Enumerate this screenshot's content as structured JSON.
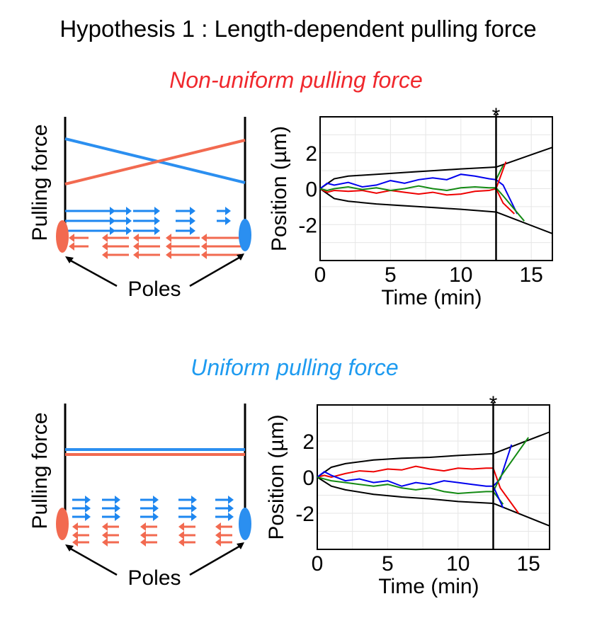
{
  "title": "Hypothesis 1 : Length-dependent pulling force",
  "colors": {
    "red_heading": "#f0282d",
    "blue_heading": "#1e9bf0",
    "red_force": "#f26a50",
    "blue_force": "#2b8ff0",
    "arrow_blue": "#1e87f0",
    "arrow_red": "#f26a50",
    "trace_red": "#ee0000",
    "trace_blue": "#0000ee",
    "trace_green": "#138a13"
  },
  "panels": [
    {
      "heading": "Non-uniform pulling force",
      "heading_color": "red",
      "force_label": "Pulling force",
      "poles_label": "Poles",
      "force_profile": "non-uniform"
    },
    {
      "heading": "Uniform pulling force",
      "heading_color": "blue",
      "force_label": "Pulling force",
      "poles_label": "Poles",
      "force_profile": "uniform"
    }
  ],
  "chart_data": [
    {
      "type": "line",
      "xlabel": "Time (min)",
      "ylabel": "Position (µm)",
      "xlim": [
        0,
        16.5
      ],
      "ylim": [
        -4,
        4
      ],
      "xticks": [
        "0",
        "5",
        "10",
        "15"
      ],
      "yticks": [
        "2",
        "0",
        "-2"
      ],
      "grid": true,
      "marker_label": "*",
      "marker_time": 12.5,
      "envelope": {
        "x": [
          0,
          1,
          2,
          4,
          6,
          8,
          10,
          12.5
        ],
        "upper": [
          0,
          0.55,
          0.7,
          0.8,
          0.9,
          1.0,
          1.1,
          1.2
        ],
        "lower": [
          0,
          -0.55,
          -0.7,
          -0.85,
          -0.95,
          -1.05,
          -1.15,
          -1.3
        ],
        "after_x": [
          12.5,
          16.5
        ],
        "after_upper": [
          1.2,
          2.3
        ],
        "after_lower": [
          -1.3,
          -2.5
        ]
      },
      "series": [
        {
          "color": "red",
          "x": [
            0,
            0.5,
            1,
            2,
            3,
            4,
            5,
            6,
            7,
            8,
            9,
            10,
            11,
            12,
            12.5,
            13,
            13.8
          ],
          "values": [
            0,
            -0.2,
            -0.1,
            -0.15,
            -0.1,
            -0.25,
            -0.1,
            -0.2,
            -0.3,
            -0.2,
            -0.35,
            -0.3,
            -0.15,
            -0.1,
            0,
            -0.8,
            -1.4
          ]
        },
        {
          "color": "blue",
          "x": [
            0,
            0.5,
            1,
            2,
            3,
            4,
            5,
            6,
            7,
            8,
            9,
            10,
            11,
            12,
            12.5,
            13,
            14
          ],
          "values": [
            0,
            0.3,
            0.2,
            0.35,
            0.1,
            0.2,
            0.45,
            0.3,
            0.5,
            0.6,
            0.5,
            0.8,
            0.7,
            0.55,
            0.5,
            0.2,
            -1.4
          ]
        },
        {
          "color": "green",
          "x": [
            0,
            0.5,
            1,
            2,
            3,
            4,
            5,
            6,
            7,
            8,
            9,
            10,
            11,
            12,
            12.5,
            13,
            14.5
          ],
          "values": [
            0,
            -0.1,
            0,
            0.1,
            -0.05,
            0.05,
            -0.1,
            0,
            0.15,
            0,
            -0.1,
            0.05,
            0.1,
            0.05,
            0.05,
            -0.4,
            -1.8
          ]
        },
        {
          "color": "green",
          "x": [
            12.5,
            13
          ],
          "values": [
            0.5,
            1.3
          ]
        },
        {
          "color": "red",
          "x": [
            12.5,
            13.2
          ],
          "values": [
            0,
            1.5
          ]
        }
      ]
    },
    {
      "type": "line",
      "xlabel": "Time (min)",
      "ylabel": "Position (µm)",
      "xlim": [
        0,
        16.5
      ],
      "ylim": [
        -4,
        4
      ],
      "xticks": [
        "0",
        "5",
        "10",
        "15"
      ],
      "yticks": [
        "2",
        "0",
        "-2"
      ],
      "grid": true,
      "marker_label": "*",
      "marker_time": 12.5,
      "envelope": {
        "x": [
          0,
          1,
          2,
          4,
          6,
          8,
          10,
          12.5
        ],
        "upper": [
          0,
          0.55,
          0.75,
          0.95,
          1.05,
          1.1,
          1.2,
          1.3
        ],
        "lower": [
          0,
          -0.5,
          -0.7,
          -0.95,
          -1.1,
          -1.2,
          -1.35,
          -1.45
        ],
        "after_x": [
          12.5,
          16.5
        ],
        "after_upper": [
          1.3,
          2.5
        ],
        "after_lower": [
          -1.45,
          -2.7
        ]
      },
      "series": [
        {
          "color": "red",
          "x": [
            0,
            0.5,
            1,
            2,
            3,
            4,
            5,
            6,
            7,
            8,
            9,
            10,
            11,
            12,
            12.5,
            13,
            14.3
          ],
          "values": [
            0,
            0.1,
            0,
            0.2,
            0.35,
            0.3,
            0.45,
            0.4,
            0.6,
            0.45,
            0.35,
            0.5,
            0.45,
            0.5,
            0.5,
            -0.6,
            -2
          ]
        },
        {
          "color": "blue",
          "x": [
            0,
            0.5,
            1,
            2,
            3,
            4,
            5,
            6,
            7,
            8,
            9,
            10,
            11,
            12,
            12.5,
            13,
            13.8
          ],
          "values": [
            0,
            0.3,
            0.1,
            -0.2,
            -0.1,
            -0.3,
            -0.2,
            -0.5,
            -0.3,
            -0.4,
            -0.2,
            -0.3,
            -0.4,
            -0.5,
            -0.5,
            -0.1,
            1.8
          ]
        },
        {
          "color": "green",
          "x": [
            0,
            0.5,
            1,
            2,
            3,
            4,
            5,
            6,
            7,
            8,
            9,
            10,
            11,
            12,
            12.5,
            13,
            15
          ],
          "values": [
            0,
            -0.1,
            -0.2,
            -0.3,
            -0.4,
            -0.5,
            -0.4,
            -0.6,
            -0.7,
            -0.6,
            -0.8,
            -0.9,
            -0.85,
            -0.8,
            -0.8,
            0.0,
            2.2
          ]
        },
        {
          "color": "green",
          "x": [
            12.5,
            13.2
          ],
          "values": [
            -0.8,
            -1.5
          ]
        },
        {
          "color": "blue",
          "x": [
            12.5,
            13.2
          ],
          "values": [
            -0.5,
            -1.7
          ]
        }
      ]
    }
  ]
}
